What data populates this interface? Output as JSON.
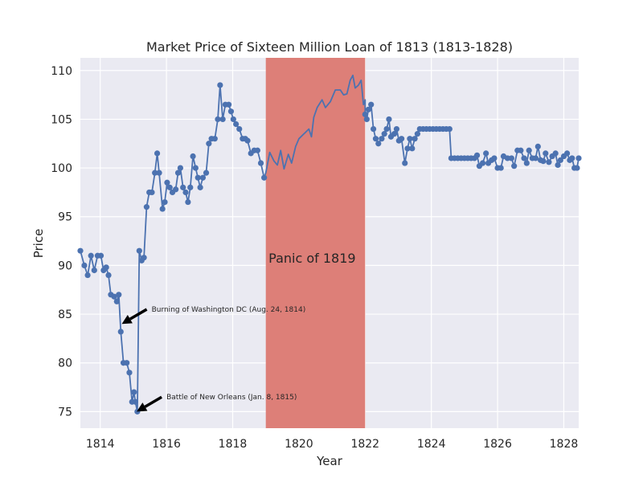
{
  "chart_data": {
    "type": "line",
    "title": "Market Price of Sixteen Million Loan of 1813 (1813-1828)",
    "xlabel": "Year",
    "ylabel": "Price",
    "xlim": [
      1813.4,
      1828.45
    ],
    "ylim": [
      73.3,
      111.3
    ],
    "x_ticks": [
      1814,
      1816,
      1818,
      1820,
      1822,
      1824,
      1826,
      1828
    ],
    "x_tick_labels": [
      "1814",
      "1816",
      "1818",
      "1820",
      "1822",
      "1824",
      "1826",
      "1828"
    ],
    "y_ticks": [
      75,
      80,
      85,
      90,
      95,
      100,
      105,
      110
    ],
    "y_tick_labels": [
      "75",
      "80",
      "85",
      "90",
      "95",
      "100",
      "105",
      "110"
    ],
    "grid": true,
    "background": "#eaeaf2",
    "line_color": "#4c72b0",
    "series": [
      {
        "segment": "before-panic",
        "markers": true,
        "points": [
          [
            1813.4,
            91.5
          ],
          [
            1813.52,
            90.0
          ],
          [
            1813.62,
            89.0
          ],
          [
            1813.72,
            91.0
          ],
          [
            1813.82,
            89.5
          ],
          [
            1813.92,
            91.0
          ],
          [
            1814.02,
            91.0
          ],
          [
            1814.1,
            89.5
          ],
          [
            1814.18,
            89.8
          ],
          [
            1814.25,
            89.0
          ],
          [
            1814.32,
            87.0
          ],
          [
            1814.42,
            86.8
          ],
          [
            1814.5,
            86.3
          ],
          [
            1814.56,
            87.0
          ],
          [
            1814.62,
            83.2
          ],
          [
            1814.7,
            80.0
          ],
          [
            1814.8,
            80.0
          ],
          [
            1814.88,
            79.0
          ],
          [
            1814.96,
            76.0
          ],
          [
            1815.02,
            77.0
          ],
          [
            1815.06,
            76.0
          ],
          [
            1815.12,
            75.0
          ],
          [
            1815.18,
            91.5
          ],
          [
            1815.25,
            90.5
          ],
          [
            1815.32,
            90.8
          ],
          [
            1815.4,
            96.0
          ],
          [
            1815.48,
            97.5
          ],
          [
            1815.56,
            97.5
          ],
          [
            1815.65,
            99.5
          ],
          [
            1815.72,
            101.5
          ],
          [
            1815.78,
            99.5
          ],
          [
            1815.88,
            95.8
          ],
          [
            1815.95,
            96.5
          ],
          [
            1816.02,
            98.5
          ],
          [
            1816.1,
            98.0
          ],
          [
            1816.18,
            97.5
          ],
          [
            1816.28,
            97.8
          ],
          [
            1816.35,
            99.5
          ],
          [
            1816.42,
            100.0
          ],
          [
            1816.5,
            98.0
          ],
          [
            1816.58,
            97.5
          ],
          [
            1816.65,
            96.5
          ],
          [
            1816.72,
            98.0
          ],
          [
            1816.8,
            101.2
          ],
          [
            1816.88,
            100.0
          ],
          [
            1816.95,
            99.0
          ],
          [
            1817.02,
            98.0
          ],
          [
            1817.1,
            99.0
          ],
          [
            1817.2,
            99.5
          ],
          [
            1817.28,
            102.5
          ],
          [
            1817.36,
            103.0
          ],
          [
            1817.46,
            103.0
          ],
          [
            1817.55,
            105.0
          ],
          [
            1817.62,
            108.5
          ],
          [
            1817.7,
            105.0
          ],
          [
            1817.78,
            106.5
          ],
          [
            1817.88,
            106.5
          ],
          [
            1817.95,
            105.8
          ],
          [
            1818.02,
            105.0
          ],
          [
            1818.1,
            104.5
          ],
          [
            1818.2,
            104.0
          ],
          [
            1818.3,
            103.0
          ],
          [
            1818.38,
            103.0
          ],
          [
            1818.45,
            102.8
          ],
          [
            1818.55,
            101.5
          ],
          [
            1818.65,
            101.8
          ],
          [
            1818.75,
            101.8
          ],
          [
            1818.85,
            100.5
          ],
          [
            1818.95,
            99.0
          ]
        ]
      },
      {
        "segment": "panic",
        "markers": false,
        "points": [
          [
            1819.0,
            99.5
          ],
          [
            1819.12,
            101.6
          ],
          [
            1819.25,
            100.7
          ],
          [
            1819.35,
            100.3
          ],
          [
            1819.45,
            101.8
          ],
          [
            1819.55,
            99.9
          ],
          [
            1819.68,
            101.4
          ],
          [
            1819.78,
            100.5
          ],
          [
            1819.9,
            102.2
          ],
          [
            1820.0,
            103.0
          ],
          [
            1820.15,
            103.5
          ],
          [
            1820.3,
            104.0
          ],
          [
            1820.38,
            103.2
          ],
          [
            1820.45,
            105.2
          ],
          [
            1820.55,
            106.2
          ],
          [
            1820.7,
            107.0
          ],
          [
            1820.8,
            106.2
          ],
          [
            1820.95,
            106.8
          ],
          [
            1821.1,
            108.0
          ],
          [
            1821.25,
            108.0
          ],
          [
            1821.35,
            107.5
          ],
          [
            1821.45,
            107.6
          ],
          [
            1821.55,
            109.0
          ],
          [
            1821.63,
            109.5
          ],
          [
            1821.7,
            108.2
          ],
          [
            1821.8,
            108.5
          ],
          [
            1821.88,
            109.0
          ],
          [
            1821.95,
            106.5
          ],
          [
            1822.0,
            107.0
          ]
        ]
      },
      {
        "segment": "after-panic",
        "markers": true,
        "points": [
          [
            1822.0,
            105.5
          ],
          [
            1822.05,
            105.0
          ],
          [
            1822.1,
            106.0
          ],
          [
            1822.18,
            106.5
          ],
          [
            1822.25,
            104.0
          ],
          [
            1822.32,
            103.0
          ],
          [
            1822.4,
            102.5
          ],
          [
            1822.5,
            103.0
          ],
          [
            1822.58,
            103.5
          ],
          [
            1822.65,
            104.0
          ],
          [
            1822.72,
            105.0
          ],
          [
            1822.78,
            103.2
          ],
          [
            1822.88,
            103.5
          ],
          [
            1822.95,
            104.0
          ],
          [
            1823.02,
            102.8
          ],
          [
            1823.1,
            103.0
          ],
          [
            1823.2,
            100.5
          ],
          [
            1823.28,
            102.0
          ],
          [
            1823.35,
            103.0
          ],
          [
            1823.42,
            102.0
          ],
          [
            1823.5,
            103.0
          ],
          [
            1823.58,
            103.5
          ],
          [
            1823.65,
            104.0
          ],
          [
            1823.75,
            104.0
          ],
          [
            1823.85,
            104.0
          ],
          [
            1823.95,
            104.0
          ],
          [
            1824.05,
            104.0
          ],
          [
            1824.15,
            104.0
          ],
          [
            1824.25,
            104.0
          ],
          [
            1824.35,
            104.0
          ],
          [
            1824.45,
            104.0
          ],
          [
            1824.55,
            104.0
          ],
          [
            1824.6,
            101.0
          ],
          [
            1824.7,
            101.0
          ],
          [
            1824.8,
            101.0
          ],
          [
            1824.9,
            101.0
          ],
          [
            1825.0,
            101.0
          ],
          [
            1825.1,
            101.0
          ],
          [
            1825.2,
            101.0
          ],
          [
            1825.3,
            101.0
          ],
          [
            1825.38,
            101.3
          ],
          [
            1825.45,
            100.2
          ],
          [
            1825.55,
            100.5
          ],
          [
            1825.65,
            101.5
          ],
          [
            1825.72,
            100.5
          ],
          [
            1825.82,
            100.8
          ],
          [
            1825.9,
            101.0
          ],
          [
            1826.0,
            100.0
          ],
          [
            1826.1,
            100.0
          ],
          [
            1826.18,
            101.2
          ],
          [
            1826.3,
            101.0
          ],
          [
            1826.42,
            101.0
          ],
          [
            1826.5,
            100.2
          ],
          [
            1826.6,
            101.8
          ],
          [
            1826.7,
            101.8
          ],
          [
            1826.8,
            101.0
          ],
          [
            1826.88,
            100.5
          ],
          [
            1826.95,
            101.8
          ],
          [
            1827.05,
            101.0
          ],
          [
            1827.15,
            101.0
          ],
          [
            1827.22,
            102.2
          ],
          [
            1827.3,
            100.8
          ],
          [
            1827.38,
            100.7
          ],
          [
            1827.45,
            101.5
          ],
          [
            1827.55,
            100.6
          ],
          [
            1827.65,
            101.2
          ],
          [
            1827.75,
            101.5
          ],
          [
            1827.82,
            100.3
          ],
          [
            1827.9,
            100.8
          ],
          [
            1828.0,
            101.2
          ],
          [
            1828.1,
            101.5
          ],
          [
            1828.18,
            100.8
          ],
          [
            1828.25,
            101.0
          ],
          [
            1828.32,
            100.0
          ],
          [
            1828.4,
            100.0
          ],
          [
            1828.45,
            101.0
          ]
        ]
      }
    ],
    "shaded_band": {
      "label": "Panic of 1819",
      "x_start": 1819.0,
      "x_end": 1822.0,
      "label_x": 1820.4,
      "label_y": 90.3,
      "color": "#dd7f78"
    },
    "annotations": [
      {
        "text": "Burning of Washington DC (Aug. 24, 1814)",
        "point": [
          1814.65,
          84.0
        ],
        "text_pos": [
          1815.55,
          85.0
        ]
      },
      {
        "text": "Battle of New Orleans (Jan. 8, 1815)",
        "point": [
          1815.1,
          75.0
        ],
        "text_pos": [
          1816.0,
          76.0
        ]
      }
    ]
  }
}
